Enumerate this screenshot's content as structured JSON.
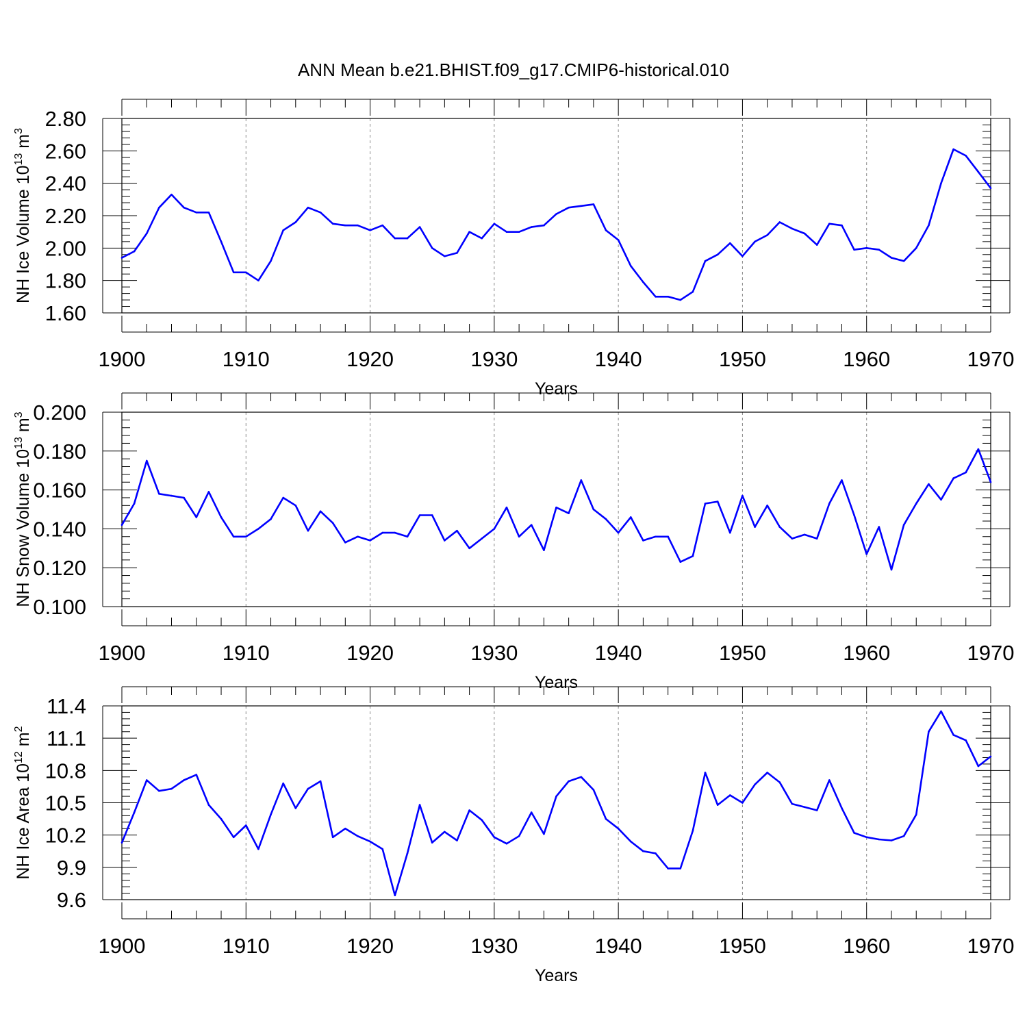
{
  "title": "ANN Mean b.e21.BHIST.f09_g17.CMIP6-historical.010",
  "colors": {
    "series": "#0000ff",
    "grid": "#8a8a8a",
    "axis": "#000000"
  },
  "chart_data": [
    {
      "type": "line",
      "ylabel": "NH Ice Volume 10",
      "ylabel_sup": "13",
      "ylabel_unit": " m",
      "ylabel_unit_sup": "3",
      "xlabel": "Years",
      "xlim": [
        1900,
        1970
      ],
      "ylim": [
        1.6,
        2.8
      ],
      "grid": "vertical dashed at major x ticks",
      "x_ticks": [
        1900,
        1910,
        1920,
        1930,
        1940,
        1950,
        1960,
        1970
      ],
      "x_tick_labels": [
        "1900",
        "1910",
        "1920",
        "1930",
        "1940",
        "1950",
        "1960",
        "1970"
      ],
      "y_ticks": [
        1.6,
        1.8,
        2.0,
        2.2,
        2.4,
        2.6,
        2.8
      ],
      "y_tick_labels": [
        "1.60",
        "1.80",
        "2.00",
        "2.20",
        "2.40",
        "2.60",
        "2.80"
      ],
      "y_minor_step": 0.04,
      "x_start": 1900,
      "values": [
        1.94,
        1.98,
        2.09,
        2.25,
        2.33,
        2.25,
        2.22,
        2.22,
        2.04,
        1.85,
        1.85,
        1.8,
        1.92,
        2.11,
        2.16,
        2.25,
        2.22,
        2.15,
        2.14,
        2.14,
        2.11,
        2.14,
        2.06,
        2.06,
        2.13,
        2.0,
        1.95,
        1.97,
        2.1,
        2.06,
        2.15,
        2.1,
        2.1,
        2.13,
        2.14,
        2.21,
        2.25,
        2.26,
        2.27,
        2.11,
        2.05,
        1.89,
        1.79,
        1.7,
        1.7,
        1.68,
        1.73,
        1.92,
        1.96,
        2.03,
        1.95,
        2.04,
        2.08,
        2.16,
        2.12,
        2.09,
        2.02,
        2.15,
        2.14,
        1.99,
        2.0,
        1.99,
        1.94,
        1.92,
        2.0,
        2.14,
        2.4,
        2.61,
        2.57,
        2.47,
        2.37
      ]
    },
    {
      "type": "line",
      "ylabel": "NH Snow Volume 10",
      "ylabel_sup": "13",
      "ylabel_unit": " m",
      "ylabel_unit_sup": "3",
      "xlabel": "Years",
      "xlim": [
        1900,
        1970
      ],
      "ylim": [
        0.1,
        0.2
      ],
      "grid": "vertical dashed at major x ticks",
      "x_ticks": [
        1900,
        1910,
        1920,
        1930,
        1940,
        1950,
        1960,
        1970
      ],
      "x_tick_labels": [
        "1900",
        "1910",
        "1920",
        "1930",
        "1940",
        "1950",
        "1960",
        "1970"
      ],
      "y_ticks": [
        0.1,
        0.12,
        0.14,
        0.16,
        0.18,
        0.2
      ],
      "y_tick_labels": [
        "0.100",
        "0.120",
        "0.140",
        "0.160",
        "0.180",
        "0.200"
      ],
      "y_minor_step": 0.004,
      "x_start": 1900,
      "values": [
        0.142,
        0.153,
        0.175,
        0.158,
        0.157,
        0.156,
        0.146,
        0.159,
        0.146,
        0.136,
        0.136,
        0.14,
        0.145,
        0.156,
        0.152,
        0.139,
        0.149,
        0.143,
        0.133,
        0.136,
        0.134,
        0.138,
        0.138,
        0.136,
        0.147,
        0.147,
        0.134,
        0.139,
        0.13,
        0.135,
        0.14,
        0.151,
        0.136,
        0.142,
        0.129,
        0.151,
        0.148,
        0.165,
        0.15,
        0.145,
        0.138,
        0.146,
        0.134,
        0.136,
        0.136,
        0.123,
        0.126,
        0.153,
        0.154,
        0.138,
        0.157,
        0.141,
        0.152,
        0.141,
        0.135,
        0.137,
        0.135,
        0.153,
        0.165,
        0.147,
        0.127,
        0.141,
        0.119,
        0.142,
        0.153,
        0.163,
        0.155,
        0.166,
        0.169,
        0.181,
        0.164
      ]
    },
    {
      "type": "line",
      "ylabel": "NH Ice Area 10",
      "ylabel_sup": "12",
      "ylabel_unit": " m",
      "ylabel_unit_sup": "2",
      "xlabel": "Years",
      "xlim": [
        1900,
        1970
      ],
      "ylim": [
        9.6,
        11.4
      ],
      "grid": "vertical dashed at major x ticks",
      "x_ticks": [
        1900,
        1910,
        1920,
        1930,
        1940,
        1950,
        1960,
        1970
      ],
      "x_tick_labels": [
        "1900",
        "1910",
        "1920",
        "1930",
        "1940",
        "1950",
        "1960",
        "1970"
      ],
      "y_ticks": [
        9.6,
        9.9,
        10.2,
        10.5,
        10.8,
        11.1,
        11.4
      ],
      "y_tick_labels": [
        "9.6",
        "9.9",
        "10.2",
        "10.5",
        "10.8",
        "11.1",
        "11.4"
      ],
      "y_minor_step": 0.06,
      "x_start": 1900,
      "values": [
        10.13,
        10.41,
        10.71,
        10.61,
        10.63,
        10.71,
        10.76,
        10.48,
        10.35,
        10.18,
        10.29,
        10.07,
        10.39,
        10.68,
        10.45,
        10.63,
        10.7,
        10.18,
        10.26,
        10.19,
        10.14,
        10.07,
        9.64,
        10.03,
        10.48,
        10.13,
        10.23,
        10.15,
        10.43,
        10.34,
        10.18,
        10.12,
        10.19,
        10.41,
        10.21,
        10.56,
        10.7,
        10.74,
        10.62,
        10.35,
        10.26,
        10.14,
        10.05,
        10.03,
        9.89,
        9.89,
        10.24,
        10.78,
        10.48,
        10.57,
        10.5,
        10.67,
        10.78,
        10.69,
        10.49,
        10.46,
        10.43,
        10.71,
        10.45,
        10.22,
        10.18,
        10.16,
        10.15,
        10.19,
        10.39,
        11.16,
        11.35,
        11.13,
        11.08,
        10.84,
        10.93
      ]
    }
  ]
}
